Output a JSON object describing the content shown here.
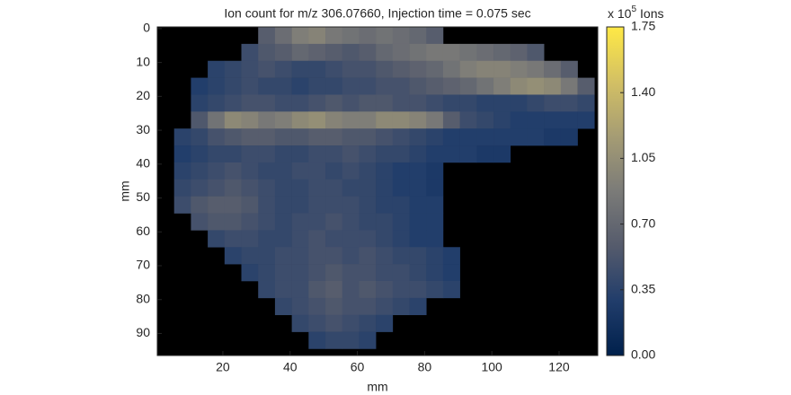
{
  "chart_data": {
    "type": "heatmap",
    "title": "Ion count for m/z 306.07660, Injection time = 0.075 sec",
    "xlabel": "mm",
    "ylabel": "mm",
    "colorbar_label": "x 10",
    "colorbar_exponent": "5",
    "colorbar_unit": "Ions",
    "xlim": [
      0.5,
      131.5
    ],
    "ylim": [
      -0.5,
      96.5
    ],
    "y_reversed": true,
    "xticks": [
      20,
      40,
      60,
      80,
      100,
      120
    ],
    "yticks": [
      0,
      10,
      20,
      30,
      40,
      50,
      60,
      70,
      80,
      90
    ],
    "clim": [
      0,
      1.75
    ],
    "cticks": [
      {
        "value": 0,
        "label": "0.00"
      },
      {
        "value": 0.35,
        "label": "0.35"
      },
      {
        "value": 0.7,
        "label": "0.70"
      },
      {
        "value": 1.05,
        "label": "1.05"
      },
      {
        "value": 1.4,
        "label": "1.40"
      },
      {
        "value": 1.75,
        "label": "1.75"
      }
    ],
    "colormap": [
      "#00204c",
      "#213d6b",
      "#555b6c",
      "#7b7b78",
      "#a59c74",
      "#d3c064",
      "#ffe945"
    ],
    "background": "#000000",
    "x": [
      3,
      8,
      13,
      18,
      23,
      28,
      33,
      38,
      43,
      48,
      53,
      58,
      63,
      68,
      73,
      78,
      83,
      88,
      93,
      98,
      103,
      108,
      113,
      118,
      123,
      128
    ],
    "y": [
      2,
      7,
      12,
      17,
      22,
      27,
      32,
      37,
      42,
      47,
      52,
      57,
      62,
      67,
      72,
      77,
      82,
      87,
      92
    ],
    "z": [
      [
        null,
        null,
        null,
        null,
        null,
        null,
        0.6,
        0.75,
        0.9,
        0.95,
        0.85,
        0.8,
        0.75,
        0.8,
        0.75,
        0.7,
        0.6,
        null,
        null,
        null,
        null,
        null,
        null,
        null,
        null,
        null
      ],
      [
        null,
        null,
        null,
        null,
        null,
        0.45,
        0.55,
        0.6,
        0.7,
        0.65,
        0.6,
        0.55,
        0.6,
        0.7,
        0.75,
        0.8,
        0.85,
        0.85,
        0.8,
        0.75,
        0.7,
        0.65,
        0.55,
        null,
        null,
        null
      ],
      [
        null,
        null,
        null,
        0.35,
        0.4,
        0.45,
        0.5,
        0.45,
        0.4,
        0.4,
        0.45,
        0.5,
        0.5,
        0.55,
        0.6,
        0.65,
        0.7,
        0.8,
        0.9,
        0.95,
        0.95,
        0.9,
        0.85,
        0.75,
        0.6,
        null
      ],
      [
        null,
        null,
        0.3,
        0.35,
        0.4,
        0.45,
        0.4,
        0.4,
        0.35,
        0.4,
        0.4,
        0.45,
        0.45,
        0.5,
        0.5,
        0.55,
        0.6,
        0.65,
        0.7,
        0.8,
        0.9,
        1.0,
        1.05,
        1.0,
        0.85,
        0.6
      ],
      [
        null,
        null,
        0.35,
        0.4,
        0.45,
        0.5,
        0.5,
        0.45,
        0.45,
        0.5,
        0.55,
        0.5,
        0.55,
        0.55,
        0.5,
        0.5,
        0.45,
        0.4,
        0.4,
        0.35,
        0.35,
        0.35,
        0.4,
        0.45,
        0.45,
        0.4
      ],
      [
        null,
        null,
        0.55,
        0.8,
        1.0,
        0.95,
        0.85,
        0.9,
        1.0,
        1.05,
        0.95,
        0.9,
        0.9,
        1.0,
        1.0,
        0.95,
        0.85,
        0.6,
        0.45,
        0.4,
        0.35,
        0.3,
        0.3,
        0.3,
        0.3,
        0.3
      ],
      [
        null,
        0.35,
        0.4,
        0.5,
        0.55,
        0.6,
        0.6,
        0.55,
        0.55,
        0.6,
        0.6,
        0.55,
        0.55,
        0.5,
        0.45,
        0.4,
        0.35,
        0.3,
        0.3,
        0.3,
        0.3,
        0.3,
        0.3,
        0.25,
        0.25,
        null
      ],
      [
        null,
        0.3,
        0.35,
        0.4,
        0.4,
        0.45,
        0.45,
        0.4,
        0.4,
        0.45,
        0.45,
        0.5,
        0.45,
        0.4,
        0.4,
        0.35,
        0.3,
        0.3,
        0.3,
        0.25,
        0.25,
        null,
        null,
        null,
        null,
        null
      ],
      [
        null,
        0.35,
        0.4,
        0.45,
        0.5,
        0.45,
        0.4,
        0.4,
        0.45,
        0.45,
        0.4,
        0.45,
        0.4,
        0.35,
        0.3,
        0.3,
        0.25,
        null,
        null,
        null,
        null,
        null,
        null,
        null,
        null,
        null
      ],
      [
        null,
        0.4,
        0.45,
        0.5,
        0.55,
        0.5,
        0.45,
        0.4,
        0.4,
        0.45,
        0.45,
        0.4,
        0.4,
        0.35,
        0.3,
        0.3,
        0.25,
        null,
        null,
        null,
        null,
        null,
        null,
        null,
        null,
        null
      ],
      [
        null,
        0.45,
        0.55,
        0.6,
        0.6,
        0.55,
        0.45,
        0.4,
        0.4,
        0.45,
        0.45,
        0.45,
        0.4,
        0.35,
        0.35,
        0.3,
        0.3,
        null,
        null,
        null,
        null,
        null,
        null,
        null,
        null,
        null
      ],
      [
        null,
        null,
        0.5,
        0.55,
        0.55,
        0.5,
        0.45,
        0.4,
        0.45,
        0.45,
        0.5,
        0.45,
        0.4,
        0.4,
        0.35,
        0.3,
        0.3,
        null,
        null,
        null,
        null,
        null,
        null,
        null,
        null,
        null
      ],
      [
        null,
        null,
        null,
        0.4,
        0.45,
        0.45,
        0.4,
        0.4,
        0.45,
        0.5,
        0.45,
        0.45,
        0.45,
        0.4,
        0.35,
        0.3,
        0.3,
        null,
        null,
        null,
        null,
        null,
        null,
        null,
        null,
        null
      ],
      [
        null,
        null,
        null,
        null,
        0.35,
        0.4,
        0.4,
        0.45,
        0.45,
        0.5,
        0.5,
        0.45,
        0.5,
        0.45,
        0.4,
        0.4,
        0.35,
        0.3,
        null,
        null,
        null,
        null,
        null,
        null,
        null,
        null
      ],
      [
        null,
        null,
        null,
        null,
        null,
        0.35,
        0.4,
        0.45,
        0.45,
        0.5,
        0.55,
        0.5,
        0.5,
        0.45,
        0.45,
        0.4,
        0.35,
        0.3,
        null,
        null,
        null,
        null,
        null,
        null,
        null,
        null
      ],
      [
        null,
        null,
        null,
        null,
        null,
        null,
        0.4,
        0.45,
        0.45,
        0.55,
        0.6,
        0.5,
        0.55,
        0.5,
        0.45,
        0.45,
        0.4,
        0.35,
        null,
        null,
        null,
        null,
        null,
        null,
        null,
        null
      ],
      [
        null,
        null,
        null,
        null,
        null,
        null,
        null,
        0.4,
        0.45,
        0.5,
        0.55,
        0.5,
        0.5,
        0.45,
        0.4,
        0.35,
        null,
        null,
        null,
        null,
        null,
        null,
        null,
        null,
        null,
        null
      ],
      [
        null,
        null,
        null,
        null,
        null,
        null,
        null,
        null,
        0.4,
        0.45,
        0.5,
        0.45,
        0.4,
        0.35,
        null,
        null,
        null,
        null,
        null,
        null,
        null,
        null,
        null,
        null,
        null,
        null
      ],
      [
        null,
        null,
        null,
        null,
        null,
        null,
        null,
        null,
        null,
        0.35,
        0.4,
        0.4,
        0.35,
        null,
        null,
        null,
        null,
        null,
        null,
        null,
        null,
        null,
        null,
        null,
        null,
        null
      ]
    ]
  }
}
